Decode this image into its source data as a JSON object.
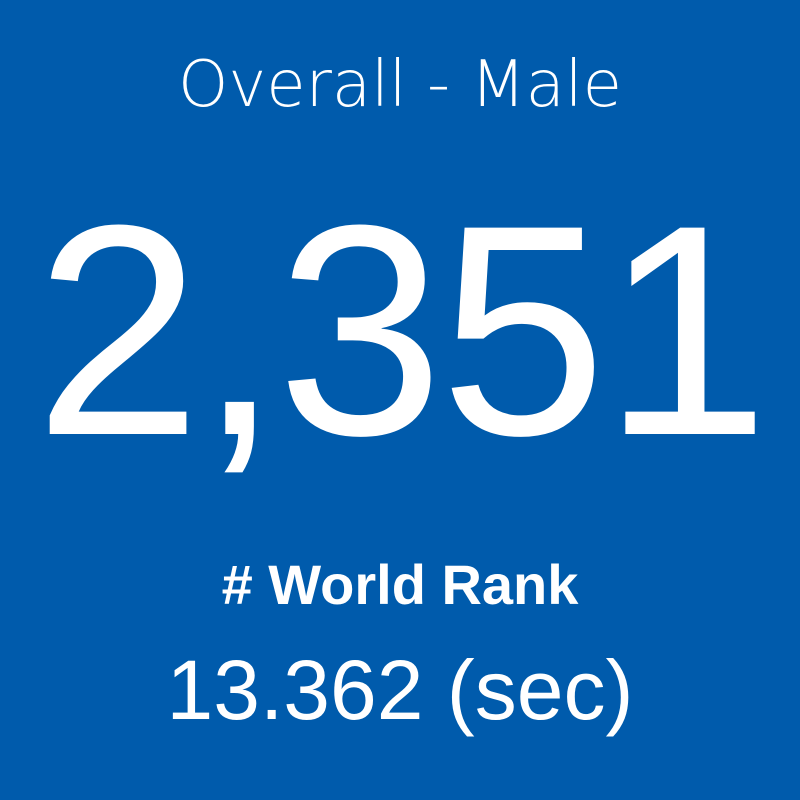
{
  "header": {
    "title": "Overall - Male"
  },
  "stat": {
    "value": "2,351",
    "label": "# World Rank",
    "time": "13.362 (sec)"
  }
}
